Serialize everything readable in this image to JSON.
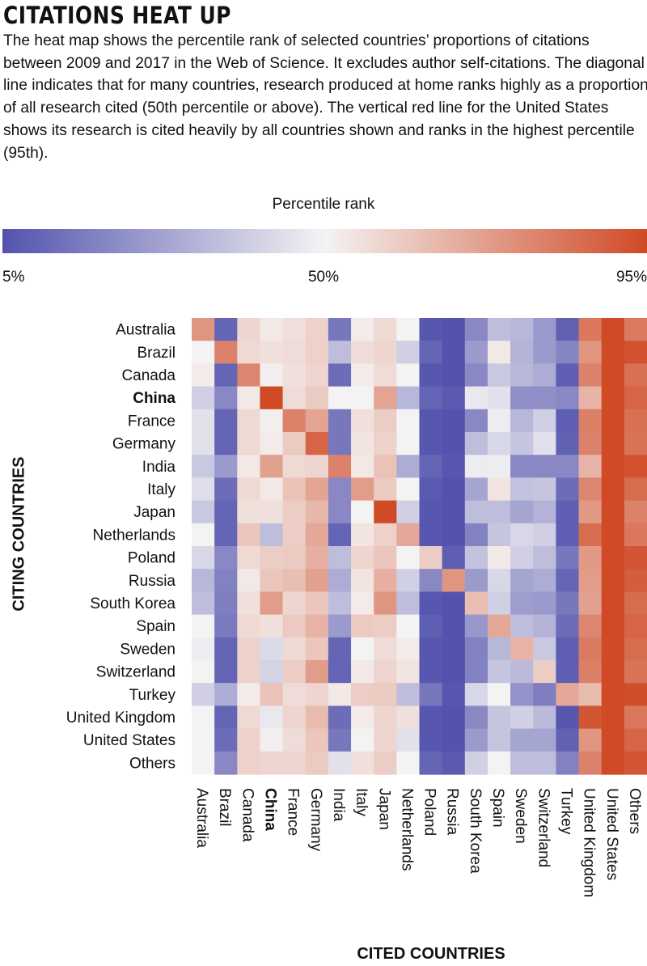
{
  "title": "CITATIONS HEAT UP",
  "subtitle": "The heat map shows the percentile rank of selected countries’ proportions of citations between 2009 and 2017 in the Web of Science. It excludes author self-citations. The diagonal line indicates that for many countries, research produced at home ranks highly as a proportion of all research cited (50th percentile or above). The vertical red line for the United States shows its research is cited heavily by all countries shown and ranks in the highest percentile (95th).",
  "legend": {
    "title": "Percentile rank",
    "min_label": "5%",
    "mid_label": "50%",
    "max_label": "95%",
    "colors": {
      "low": "#5353ae",
      "mid": "#f4f3f3",
      "high": "#d04a26"
    }
  },
  "chart_data": {
    "type": "heatmap",
    "xlabel": "CITED COUNTRIES",
    "ylabel": "CITING COUNTRIES",
    "value_range": [
      5,
      95
    ],
    "highlighted_label": "China",
    "x_categories": [
      "Australia",
      "Brazil",
      "Canada",
      "China",
      "France",
      "Germany",
      "India",
      "Italy",
      "Japan",
      "Netherlands",
      "Poland",
      "Russia",
      "South Korea",
      "Spain",
      "Sweden",
      "Switzerland",
      "Turkey",
      "United Kingdom",
      "United States",
      "Others"
    ],
    "y_categories": [
      "Australia",
      "Brazil",
      "Canada",
      "China",
      "France",
      "Germany",
      "India",
      "Italy",
      "Japan",
      "Netherlands",
      "Poland",
      "Russia",
      "South Korea",
      "Spain",
      "Sweden",
      "Switzerland",
      "Turkey",
      "United Kingdom",
      "United States",
      "Others"
    ],
    "values": [
      [
        75,
        10,
        58,
        53,
        55,
        59,
        15,
        52,
        57,
        50,
        6,
        5,
        20,
        35,
        33,
        25,
        9,
        83,
        95,
        82
      ],
      [
        50,
        80,
        57,
        55,
        56,
        59,
        35,
        56,
        58,
        40,
        10,
        5,
        25,
        53,
        32,
        25,
        19,
        75,
        95,
        93
      ],
      [
        52,
        10,
        79,
        51,
        55,
        58,
        12,
        52,
        56,
        50,
        6,
        5,
        20,
        38,
        33,
        30,
        8,
        80,
        95,
        85
      ],
      [
        40,
        20,
        53,
        95,
        56,
        61,
        50,
        50,
        71,
        33,
        10,
        7,
        47,
        45,
        22,
        22,
        20,
        67,
        95,
        88
      ],
      [
        45,
        10,
        57,
        51,
        80,
        71,
        15,
        55,
        60,
        50,
        6,
        5,
        20,
        48,
        33,
        40,
        8,
        81,
        95,
        85
      ],
      [
        45,
        10,
        57,
        52,
        61,
        88,
        15,
        54,
        59,
        50,
        6,
        5,
        35,
        42,
        37,
        45,
        9,
        80,
        95,
        84
      ],
      [
        38,
        25,
        53,
        72,
        57,
        58,
        80,
        53,
        63,
        30,
        10,
        6,
        48,
        48,
        20,
        20,
        20,
        67,
        95,
        93
      ],
      [
        44,
        12,
        57,
        53,
        63,
        71,
        20,
        73,
        61,
        50,
        7,
        5,
        28,
        54,
        36,
        37,
        12,
        79,
        95,
        86
      ],
      [
        38,
        10,
        55,
        55,
        60,
        66,
        20,
        50,
        95,
        40,
        6,
        5,
        35,
        35,
        28,
        32,
        8,
        74,
        95,
        80
      ],
      [
        50,
        10,
        62,
        35,
        60,
        70,
        10,
        54,
        59,
        70,
        6,
        5,
        18,
        37,
        42,
        40,
        8,
        86,
        95,
        83
      ],
      [
        42,
        20,
        57,
        60,
        61,
        68,
        35,
        58,
        62,
        50,
        60,
        8,
        36,
        53,
        40,
        35,
        15,
        74,
        95,
        92
      ],
      [
        33,
        18,
        53,
        62,
        64,
        72,
        30,
        54,
        68,
        40,
        20,
        75,
        25,
        42,
        28,
        30,
        10,
        73,
        95,
        90
      ],
      [
        35,
        17,
        55,
        73,
        58,
        62,
        35,
        52,
        75,
        35,
        6,
        5,
        64,
        40,
        26,
        25,
        15,
        72,
        95,
        86
      ],
      [
        50,
        16,
        57,
        55,
        61,
        67,
        25,
        61,
        60,
        50,
        8,
        5,
        24,
        70,
        35,
        32,
        12,
        79,
        95,
        88
      ],
      [
        48,
        10,
        59,
        43,
        57,
        62,
        10,
        50,
        56,
        52,
        6,
        5,
        18,
        33,
        67,
        38,
        8,
        82,
        95,
        86
      ],
      [
        50,
        10,
        59,
        41,
        60,
        73,
        10,
        53,
        58,
        54,
        6,
        5,
        18,
        37,
        34,
        60,
        8,
        81,
        95,
        84
      ],
      [
        40,
        30,
        52,
        63,
        56,
        58,
        53,
        60,
        61,
        35,
        15,
        6,
        42,
        50,
        23,
        17,
        70,
        65,
        95,
        94
      ],
      [
        50,
        10,
        57,
        47,
        58,
        65,
        12,
        52,
        58,
        55,
        6,
        5,
        20,
        37,
        40,
        34,
        6,
        92,
        95,
        83
      ],
      [
        50,
        12,
        59,
        51,
        56,
        62,
        15,
        50,
        58,
        45,
        6,
        5,
        25,
        37,
        28,
        28,
        9,
        75,
        95,
        88
      ],
      [
        50,
        20,
        59,
        58,
        58,
        61,
        45,
        55,
        60,
        50,
        10,
        7,
        40,
        50,
        35,
        35,
        18,
        80,
        95,
        92
      ]
    ]
  }
}
